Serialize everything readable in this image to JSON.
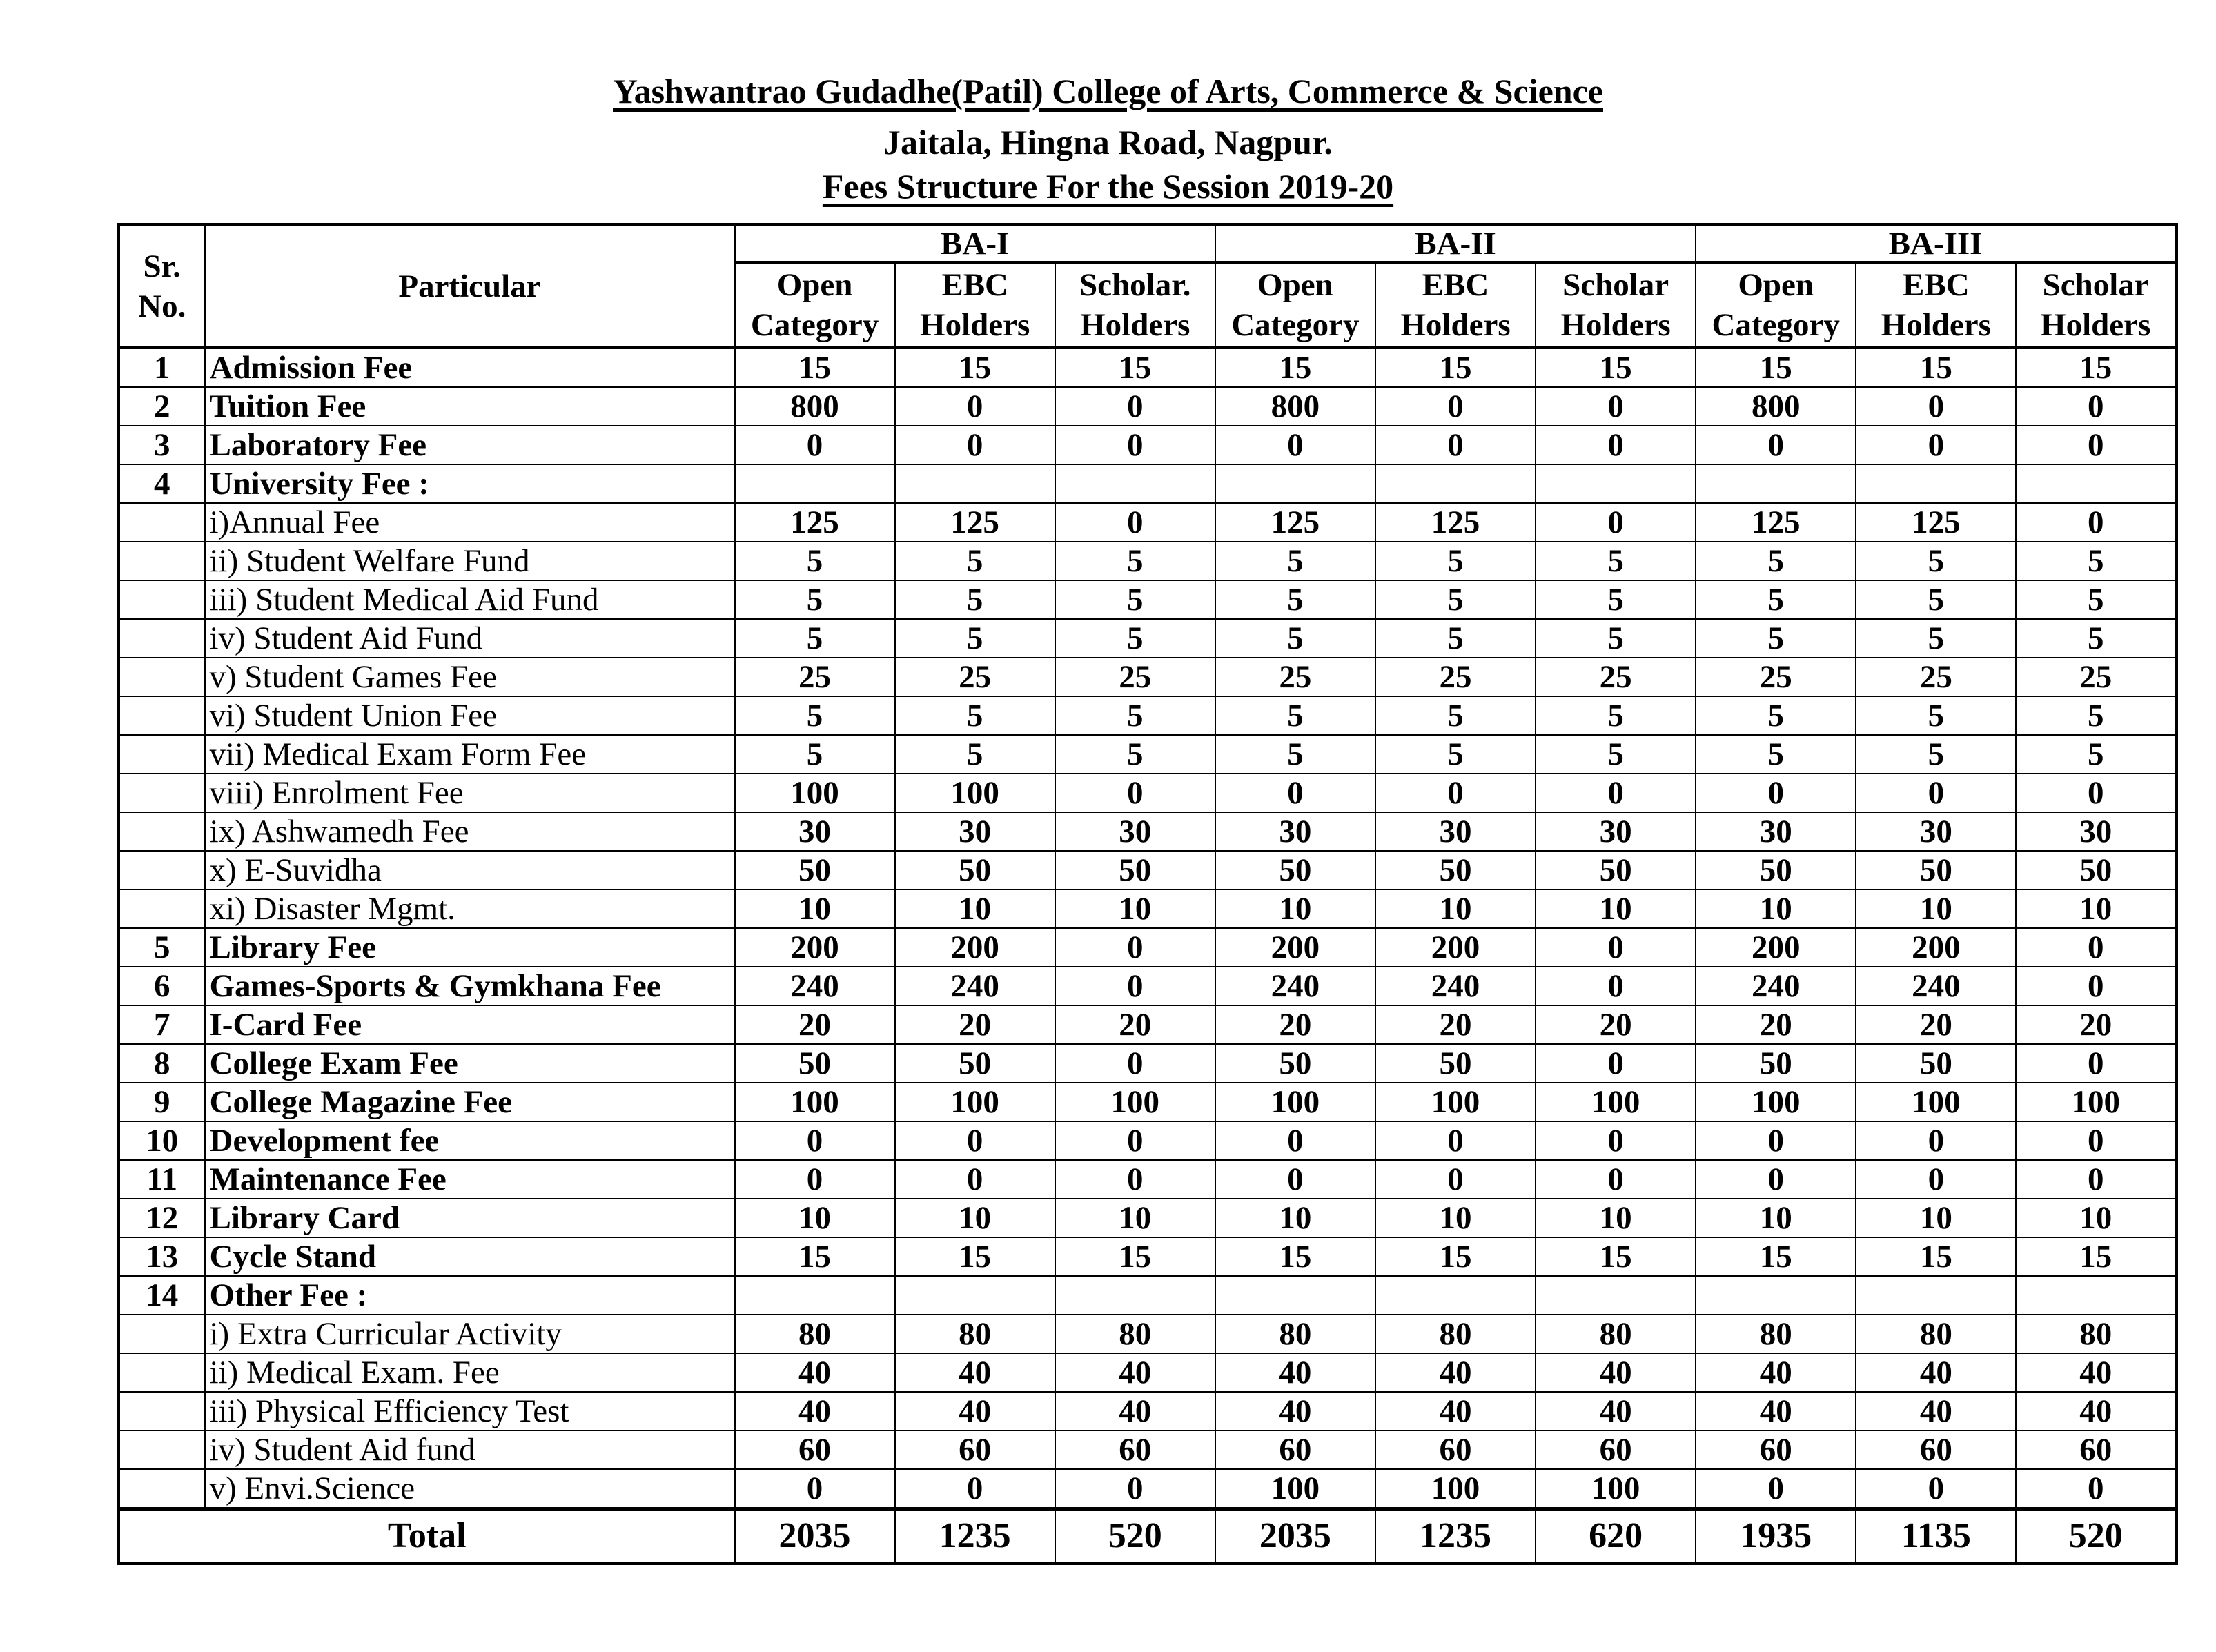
{
  "header": {
    "college": "Yashwantrao Gudadhe(Patil) College of Arts, Commerce & Science",
    "address": "Jaitala, Hingna Road, Nagpur.",
    "title": "Fees Structure For the Session 2019-20"
  },
  "table": {
    "col_sr": "Sr. No.",
    "col_particular": "Particular",
    "groups": [
      "BA-I",
      "BA-II",
      "BA-III"
    ],
    "subcols": [
      [
        "Open",
        "Category"
      ],
      [
        "EBC",
        "Holders"
      ],
      [
        "Scholar.",
        "Holders"
      ],
      [
        "Open",
        "Category"
      ],
      [
        "EBC",
        "Holders"
      ],
      [
        "Scholar",
        "Holders"
      ],
      [
        "Open",
        "Category"
      ],
      [
        "EBC",
        "Holders"
      ],
      [
        "Scholar",
        "Holders"
      ]
    ],
    "rows": [
      {
        "sr": "1",
        "particular": "Admission Fee",
        "bold": true,
        "values": [
          15,
          15,
          15,
          15,
          15,
          15,
          15,
          15,
          15
        ]
      },
      {
        "sr": "2",
        "particular": "Tuition Fee",
        "bold": true,
        "values": [
          800,
          0,
          0,
          800,
          0,
          0,
          800,
          0,
          0
        ]
      },
      {
        "sr": "3",
        "particular": "Laboratory Fee",
        "bold": true,
        "values": [
          0,
          0,
          0,
          0,
          0,
          0,
          0,
          0,
          0
        ]
      },
      {
        "sr": "4",
        "particular": "University Fee :",
        "bold": true,
        "values": []
      },
      {
        "sr": "",
        "particular": "i)Annual Fee",
        "bold": false,
        "values": [
          125,
          125,
          0,
          125,
          125,
          0,
          125,
          125,
          0
        ]
      },
      {
        "sr": "",
        "particular": "ii) Student Welfare Fund",
        "bold": false,
        "values": [
          5,
          5,
          5,
          5,
          5,
          5,
          5,
          5,
          5
        ]
      },
      {
        "sr": "",
        "particular": "iii) Student Medical Aid Fund",
        "bold": false,
        "values": [
          5,
          5,
          5,
          5,
          5,
          5,
          5,
          5,
          5
        ]
      },
      {
        "sr": "",
        "particular": "iv) Student Aid Fund",
        "bold": false,
        "values": [
          5,
          5,
          5,
          5,
          5,
          5,
          5,
          5,
          5
        ]
      },
      {
        "sr": "",
        "particular": "v) Student Games Fee",
        "bold": false,
        "values": [
          25,
          25,
          25,
          25,
          25,
          25,
          25,
          25,
          25
        ]
      },
      {
        "sr": "",
        "particular": "vi) Student Union Fee",
        "bold": false,
        "values": [
          5,
          5,
          5,
          5,
          5,
          5,
          5,
          5,
          5
        ]
      },
      {
        "sr": "",
        "particular": "vii) Medical Exam Form Fee",
        "bold": false,
        "values": [
          5,
          5,
          5,
          5,
          5,
          5,
          5,
          5,
          5
        ]
      },
      {
        "sr": "",
        "particular": "viii) Enrolment Fee",
        "bold": false,
        "values": [
          100,
          100,
          0,
          0,
          0,
          0,
          0,
          0,
          0
        ]
      },
      {
        "sr": "",
        "particular": "ix) Ashwamedh Fee",
        "bold": false,
        "values": [
          30,
          30,
          30,
          30,
          30,
          30,
          30,
          30,
          30
        ]
      },
      {
        "sr": "",
        "particular": "x) E-Suvidha",
        "bold": false,
        "values": [
          50,
          50,
          50,
          50,
          50,
          50,
          50,
          50,
          50
        ]
      },
      {
        "sr": "",
        "particular": "xi) Disaster Mgmt.",
        "bold": false,
        "values": [
          10,
          10,
          10,
          10,
          10,
          10,
          10,
          10,
          10
        ]
      },
      {
        "sr": "5",
        "particular": "Library Fee",
        "bold": true,
        "values": [
          200,
          200,
          0,
          200,
          200,
          0,
          200,
          200,
          0
        ]
      },
      {
        "sr": "6",
        "particular": "Games-Sports & Gymkhana Fee",
        "bold": true,
        "values": [
          240,
          240,
          0,
          240,
          240,
          0,
          240,
          240,
          0
        ]
      },
      {
        "sr": "7",
        "particular": "I-Card Fee",
        "bold": true,
        "values": [
          20,
          20,
          20,
          20,
          20,
          20,
          20,
          20,
          20
        ]
      },
      {
        "sr": "8",
        "particular": "College Exam Fee",
        "bold": true,
        "values": [
          50,
          50,
          0,
          50,
          50,
          0,
          50,
          50,
          0
        ]
      },
      {
        "sr": "9",
        "particular": "College Magazine Fee",
        "bold": true,
        "values": [
          100,
          100,
          100,
          100,
          100,
          100,
          100,
          100,
          100
        ]
      },
      {
        "sr": "10",
        "particular": "Development fee",
        "bold": true,
        "values": [
          0,
          0,
          0,
          0,
          0,
          0,
          0,
          0,
          0
        ]
      },
      {
        "sr": "11",
        "particular": "Maintenance Fee",
        "bold": true,
        "values": [
          0,
          0,
          0,
          0,
          0,
          0,
          0,
          0,
          0
        ]
      },
      {
        "sr": "12",
        "particular": "Library Card",
        "bold": true,
        "values": [
          10,
          10,
          10,
          10,
          10,
          10,
          10,
          10,
          10
        ]
      },
      {
        "sr": "13",
        "particular": "Cycle Stand",
        "bold": true,
        "values": [
          15,
          15,
          15,
          15,
          15,
          15,
          15,
          15,
          15
        ]
      },
      {
        "sr": "14",
        "particular": "Other Fee :",
        "bold": true,
        "values": []
      },
      {
        "sr": "",
        "particular": "i) Extra Curricular Activity",
        "bold": false,
        "values": [
          80,
          80,
          80,
          80,
          80,
          80,
          80,
          80,
          80
        ]
      },
      {
        "sr": "",
        "particular": "ii) Medical Exam. Fee",
        "bold": false,
        "values": [
          40,
          40,
          40,
          40,
          40,
          40,
          40,
          40,
          40
        ]
      },
      {
        "sr": "",
        "particular": "iii) Physical Efficiency Test",
        "bold": false,
        "values": [
          40,
          40,
          40,
          40,
          40,
          40,
          40,
          40,
          40
        ]
      },
      {
        "sr": "",
        "particular": "iv) Student Aid fund",
        "bold": false,
        "values": [
          60,
          60,
          60,
          60,
          60,
          60,
          60,
          60,
          60
        ]
      },
      {
        "sr": "",
        "particular": "v) Envi.Science",
        "bold": false,
        "values": [
          0,
          0,
          0,
          100,
          100,
          100,
          0,
          0,
          0
        ]
      }
    ],
    "total_label": "Total",
    "totals": [
      2035,
      1235,
      520,
      2035,
      1235,
      620,
      1935,
      1135,
      520
    ]
  }
}
